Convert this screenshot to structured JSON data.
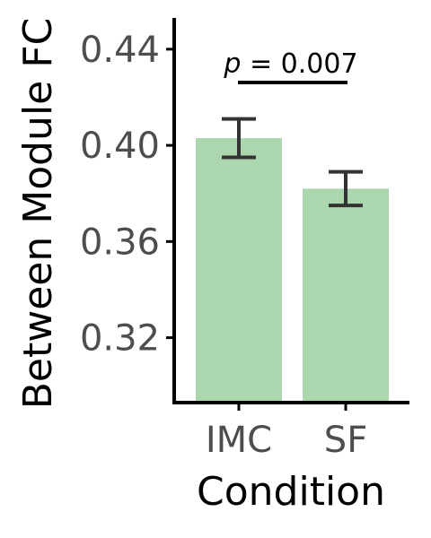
{
  "chart_data": {
    "type": "bar",
    "categories": [
      "IMC",
      "SF"
    ],
    "values": [
      0.403,
      0.382
    ],
    "error_low": [
      0.395,
      0.375
    ],
    "error_high": [
      0.411,
      0.389
    ],
    "xlabel": "Condition",
    "ylabel": "Between Module FC",
    "ylim": [
      0.293,
      0.453
    ],
    "yticks": [
      "0.32",
      "0.36",
      "0.40",
      "0.44"
    ],
    "annotation": {
      "p_symbol": "p",
      "p_rest": " = 0.007"
    },
    "colors": {
      "bar": "#acd7ae",
      "error_bar": "#333333",
      "axis": "#000000"
    },
    "grid": false,
    "legend": "none"
  }
}
